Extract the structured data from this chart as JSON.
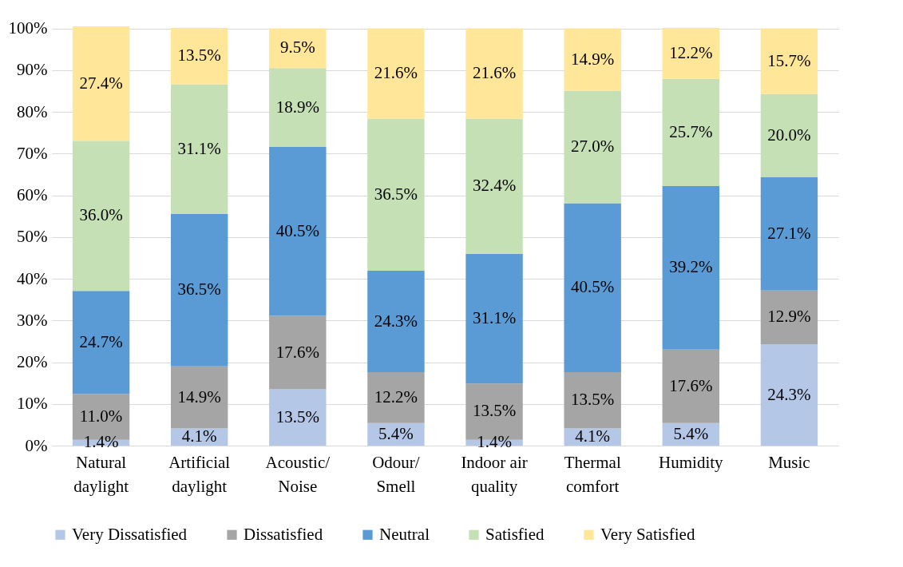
{
  "chart_data": {
    "type": "bar",
    "stacked": true,
    "categories": [
      "Natural daylight",
      "Artificial daylight",
      "Acoustic/ Noise",
      "Odour/ Smell",
      "Indoor air quality",
      "Thermal comfort",
      "Humidity",
      "Music"
    ],
    "ylim": [
      0,
      100.5
    ],
    "yticks": [
      {
        "value": 0,
        "label": "0%"
      },
      {
        "value": 10,
        "label": "10%"
      },
      {
        "value": 20,
        "label": "20%"
      },
      {
        "value": 30,
        "label": "30%"
      },
      {
        "value": 40,
        "label": "40%"
      },
      {
        "value": 50,
        "label": "50%"
      },
      {
        "value": 60,
        "label": "60%"
      },
      {
        "value": 70,
        "label": "70%"
      },
      {
        "value": 80,
        "label": "80%"
      },
      {
        "value": 90,
        "label": "90%"
      },
      {
        "value": 100,
        "label": "100%"
      }
    ],
    "grid": "y",
    "legend": "bottom",
    "series": [
      {
        "name": "Very Dissatisfied",
        "color": "#b4c7e7",
        "values": [
          1.4,
          4.1,
          13.5,
          5.4,
          1.4,
          4.1,
          5.4,
          24.3
        ],
        "value_labels": [
          "1.4%",
          "4.1%",
          "13.5%",
          "5.4%",
          "1.4%",
          "4.1%",
          "5.4%",
          "24.3%"
        ]
      },
      {
        "name": "Dissatisfied",
        "color": "#a5a5a5",
        "values": [
          11.0,
          14.9,
          17.6,
          12.2,
          13.5,
          13.5,
          17.6,
          12.9
        ],
        "value_labels": [
          "11.0%",
          "14.9%",
          "17.6%",
          "12.2%",
          "13.5%",
          "13.5%",
          "17.6%",
          "12.9%"
        ]
      },
      {
        "name": "Neutral",
        "color": "#5b9bd5",
        "values": [
          24.7,
          36.5,
          40.5,
          24.3,
          31.1,
          40.5,
          39.2,
          27.1
        ],
        "value_labels": [
          "24.7%",
          "36.5%",
          "40.5%",
          "24.3%",
          "31.1%",
          "40.5%",
          "39.2%",
          "27.1%"
        ]
      },
      {
        "name": "Satisfied",
        "color": "#c5e0b4",
        "values": [
          36.0,
          31.1,
          18.9,
          36.5,
          32.4,
          27.0,
          25.7,
          20.0
        ],
        "value_labels": [
          "36.0%",
          "31.1%",
          "18.9%",
          "36.5%",
          "32.4%",
          "27.0%",
          "25.7%",
          "20.0%"
        ]
      },
      {
        "name": "Very Satisfied",
        "color": "#ffe699",
        "values": [
          27.4,
          13.5,
          9.5,
          21.6,
          21.6,
          14.9,
          12.2,
          15.7
        ],
        "value_labels": [
          "27.4%",
          "13.5%",
          "9.5%",
          "21.6%",
          "21.6%",
          "14.9%",
          "12.2%",
          "15.7%"
        ]
      }
    ]
  }
}
